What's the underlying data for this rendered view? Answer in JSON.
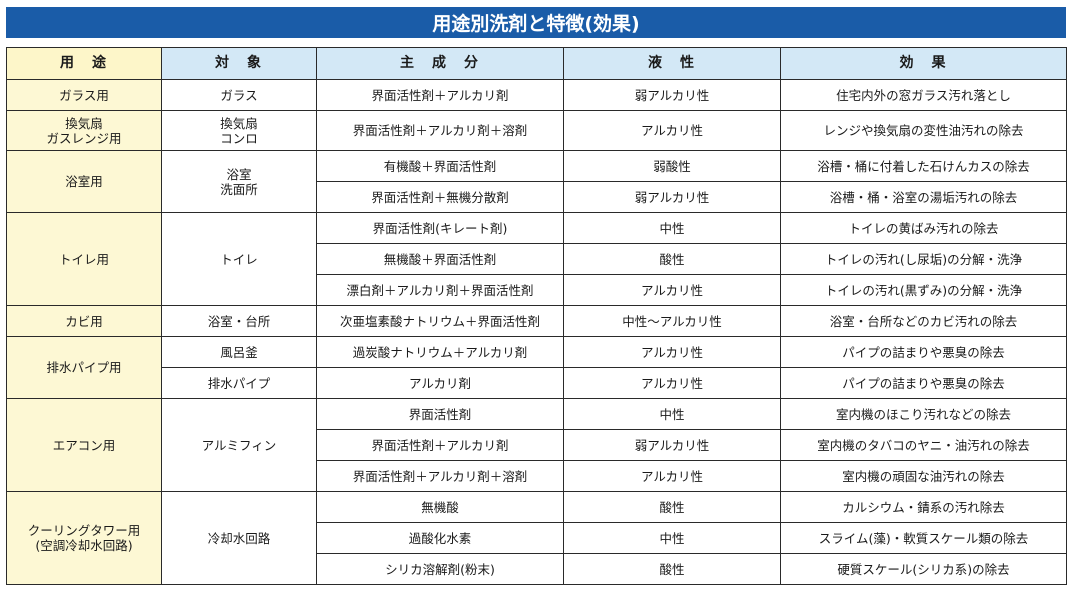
{
  "title": "用途別洗剤と特徴(効果)",
  "headers": {
    "use": "用　途",
    "target": "対　象",
    "ingredient": "主　成　分",
    "liquid": "液　性",
    "effect": "効　果"
  },
  "groups": [
    {
      "use": [
        "ガラス用"
      ],
      "targets": [
        {
          "text": [
            "ガラス"
          ],
          "span": 1
        }
      ],
      "rows": [
        {
          "ingredient": "界面活性剤＋アルカリ剤",
          "liquid": "弱アルカリ性",
          "effect": "住宅内外の窓ガラス汚れ落とし"
        }
      ]
    },
    {
      "use": [
        "換気扇",
        "ガスレンジ用"
      ],
      "targets": [
        {
          "text": [
            "換気扇",
            "コンロ"
          ],
          "span": 1
        }
      ],
      "rows": [
        {
          "ingredient": "界面活性剤＋アルカリ剤＋溶剤",
          "liquid": "アルカリ性",
          "effect": "レンジや換気扇の変性油汚れの除去"
        }
      ]
    },
    {
      "use": [
        "浴室用"
      ],
      "targets": [
        {
          "text": [
            "浴室",
            "洗面所"
          ],
          "span": 2
        }
      ],
      "rows": [
        {
          "ingredient": "有機酸＋界面活性剤",
          "liquid": "弱酸性",
          "effect": "浴槽・桶に付着した石けんカスの除去"
        },
        {
          "ingredient": "界面活性剤＋無機分散剤",
          "liquid": "弱アルカリ性",
          "effect": "浴槽・桶・浴室の湯垢汚れの除去"
        }
      ]
    },
    {
      "use": [
        "トイレ用"
      ],
      "targets": [
        {
          "text": [
            "トイレ"
          ],
          "span": 3
        }
      ],
      "rows": [
        {
          "ingredient": "界面活性剤(キレート剤)",
          "liquid": "中性",
          "effect": "トイレの黄ばみ汚れの除去"
        },
        {
          "ingredient": "無機酸＋界面活性剤",
          "liquid": "酸性",
          "effect": "トイレの汚れ(し尿垢)の分解・洗浄"
        },
        {
          "ingredient": "漂白剤＋アルカリ剤＋界面活性剤",
          "liquid": "アルカリ性",
          "effect": "トイレの汚れ(黒ずみ)の分解・洗浄"
        }
      ]
    },
    {
      "use": [
        "カビ用"
      ],
      "targets": [
        {
          "text": [
            "浴室・台所"
          ],
          "span": 1
        }
      ],
      "rows": [
        {
          "ingredient": "次亜塩素酸ナトリウム＋界面活性剤",
          "liquid": "中性～アルカリ性",
          "effect": "浴室・台所などのカビ汚れの除去"
        }
      ]
    },
    {
      "use": [
        "排水パイプ用"
      ],
      "targets": [
        {
          "text": [
            "風呂釜"
          ],
          "span": 1
        },
        {
          "text": [
            "排水パイプ"
          ],
          "span": 1
        }
      ],
      "rows": [
        {
          "ingredient": "過炭酸ナトリウム＋アルカリ剤",
          "liquid": "アルカリ性",
          "effect": "パイプの詰まりや悪臭の除去"
        },
        {
          "ingredient": "アルカリ剤",
          "liquid": "アルカリ性",
          "effect": "パイプの詰まりや悪臭の除去"
        }
      ]
    },
    {
      "use": [
        "エアコン用"
      ],
      "targets": [
        {
          "text": [
            "アルミフィン"
          ],
          "span": 3
        }
      ],
      "rows": [
        {
          "ingredient": "界面活性剤",
          "liquid": "中性",
          "effect": "室内機のほこり汚れなどの除去"
        },
        {
          "ingredient": "界面活性剤＋アルカリ剤",
          "liquid": "弱アルカリ性",
          "effect": "室内機のタバコのヤニ・油汚れの除去"
        },
        {
          "ingredient": "界面活性剤＋アルカリ剤＋溶剤",
          "liquid": "アルカリ性",
          "effect": "室内機の頑固な油汚れの除去"
        }
      ]
    },
    {
      "use": [
        "クーリングタワー用",
        "(空調冷却水回路)"
      ],
      "targets": [
        {
          "text": [
            "冷却水回路"
          ],
          "span": 3
        }
      ],
      "rows": [
        {
          "ingredient": "無機酸",
          "liquid": "酸性",
          "effect": "カルシウム・錆系の汚れ除去"
        },
        {
          "ingredient": "過酸化水素",
          "liquid": "中性",
          "effect": "スライム(藻)・軟質スケール類の除去"
        },
        {
          "ingredient": "シリカ溶解剤(粉末)",
          "liquid": "酸性",
          "effect": "硬質スケール(シリカ系)の除去"
        }
      ]
    }
  ]
}
